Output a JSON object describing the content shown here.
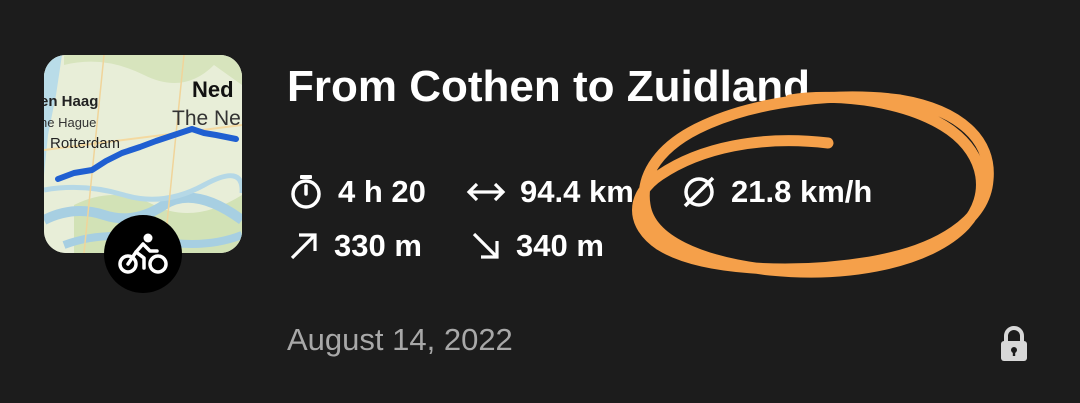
{
  "tour": {
    "title": "From Cothen to Zuidland",
    "date": "August 14, 2022",
    "sport_icon": "bike-icon",
    "privacy_icon": "lock-icon"
  },
  "map": {
    "labels": {
      "den_haag": "en Haag",
      "the_hague": "he Hague",
      "rotterdam": "Rotterdam",
      "ned": "Ned",
      "the_ne": "The Ne"
    },
    "route_color": "#1f5fd1"
  },
  "stats": {
    "duration": "4 h 20",
    "distance": "94.4 km",
    "avg_speed": "21.8 km/h",
    "uphill": "330 m",
    "downhill": "340 m"
  },
  "annotation": {
    "color": "#f5a04a",
    "shape": "hand-drawn circle around distance and speed"
  },
  "colors": {
    "background": "#1c1c1c",
    "text": "#ffffff",
    "muted": "#a8a8a8"
  }
}
